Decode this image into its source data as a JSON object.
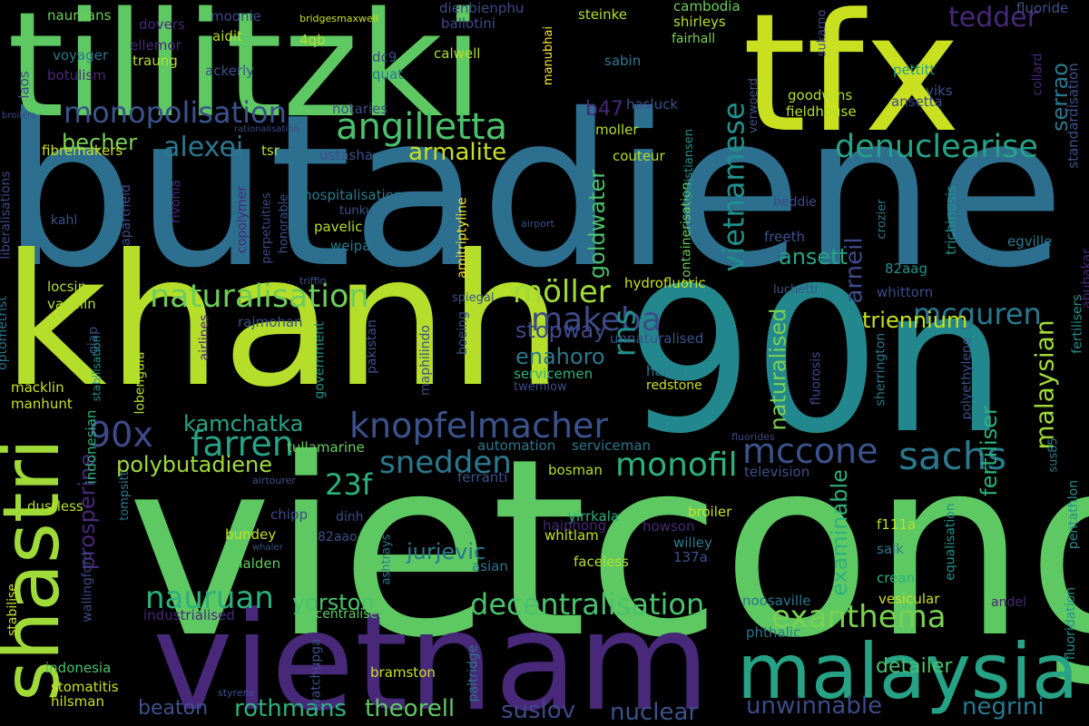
{
  "background": "#000000",
  "words": [
    {
      "text": "butadiene",
      "color": "#2d6f8e"
    },
    {
      "text": "vietcong",
      "color": "#5ec962"
    },
    {
      "text": "khanh",
      "color": "#b5de2b"
    },
    {
      "text": "90n",
      "color": "#23888e"
    },
    {
      "text": "tillitzki",
      "color": "#5ec962"
    },
    {
      "text": "tfx",
      "color": "#c8e020"
    },
    {
      "text": "vietnam",
      "color": "#482878"
    },
    {
      "text": "malaysia",
      "color": "#26a386"
    },
    {
      "text": "shastri",
      "color": "#a0da39"
    },
    {
      "text": "knopfelmacher",
      "color": "#3b528b"
    },
    {
      "text": "angilletta",
      "color": "#4ac16d"
    },
    {
      "text": "monopolisation",
      "color": "#3b528b"
    },
    {
      "text": "naturalisation",
      "color": "#6ccd5a"
    },
    {
      "text": "denuclearise",
      "color": "#26a386"
    },
    {
      "text": "decentralisation",
      "color": "#4ac16d"
    },
    {
      "text": "makeba",
      "color": "#3e4a89"
    },
    {
      "text": "mccone",
      "color": "#3b528b"
    },
    {
      "text": "sachs",
      "color": "#2a788e"
    },
    {
      "text": "farren",
      "color": "#26a386"
    },
    {
      "text": "exanthema",
      "color": "#7ad151"
    },
    {
      "text": "nauruan",
      "color": "#2cb17e"
    },
    {
      "text": "monofil",
      "color": "#2cb17e"
    },
    {
      "text": "snedden",
      "color": "#2a788e"
    },
    {
      "text": "mcguren",
      "color": "#2a788e"
    },
    {
      "text": "alexei",
      "color": "#2a788e"
    },
    {
      "text": "tedder",
      "color": "#482878"
    },
    {
      "text": "möller",
      "color": "#a0da39"
    },
    {
      "text": "90x",
      "color": "#3e4a89"
    },
    {
      "text": "23f",
      "color": "#2cb17e"
    },
    {
      "text": "yorston",
      "color": "#4ac16d"
    },
    {
      "text": "rothmans",
      "color": "#2cb17e"
    },
    {
      "text": "unwinnable",
      "color": "#3e4a89"
    },
    {
      "text": "theorell",
      "color": "#5ec962"
    },
    {
      "text": "suslov",
      "color": "#3e4a89"
    },
    {
      "text": "nuclear",
      "color": "#3b528b"
    },
    {
      "text": "negrini",
      "color": "#2a788e"
    },
    {
      "text": "beaton",
      "color": "#3b528b"
    },
    {
      "text": "jurjevic",
      "color": "#2a788e"
    },
    {
      "text": "polybutadiene",
      "color": "#a0da39"
    },
    {
      "text": "kamchatka",
      "color": "#26a386"
    },
    {
      "text": "armalite",
      "color": "#c8e020"
    },
    {
      "text": "becher",
      "color": "#7ad151"
    },
    {
      "text": "ansett",
      "color": "#26a386"
    },
    {
      "text": "triennium",
      "color": "#c8e020"
    },
    {
      "text": "stopway",
      "color": "#3e4a89"
    },
    {
      "text": "enahoro",
      "color": "#2a788e"
    },
    {
      "text": "detailer",
      "color": "#4ac16d"
    },
    {
      "text": "vietnamese",
      "color": "#21918c"
    },
    {
      "text": "malaysian",
      "color": "#a0da39"
    },
    {
      "text": "goldwater",
      "color": "#4ac16d"
    },
    {
      "text": "rns",
      "color": "#21918c"
    },
    {
      "text": "prosperine",
      "color": "#482878"
    },
    {
      "text": "confrontation",
      "color": "#2cb17e"
    },
    {
      "text": "examinable",
      "color": "#2cb17e"
    },
    {
      "text": "arneil",
      "color": "#3e4a89"
    },
    {
      "text": "naturalised",
      "color": "#7ad151"
    },
    {
      "text": "fertiliser",
      "color": "#2cb17e"
    },
    {
      "text": "serrao",
      "color": "#2a788e"
    },
    {
      "text": "b47",
      "color": "#482878"
    },
    {
      "text": "nauruans",
      "color": "#6ccd5a"
    },
    {
      "text": "dovers",
      "color": "#482878"
    },
    {
      "text": "ellemor",
      "color": "#482878"
    },
    {
      "text": "voyager",
      "color": "#2a788e"
    },
    {
      "text": "botulism",
      "color": "#482878"
    },
    {
      "text": "laos",
      "color": "#3e4a89"
    },
    {
      "text": "traung",
      "color": "#b5de2b"
    },
    {
      "text": "moonie",
      "color": "#3e4a89"
    },
    {
      "text": "aidit",
      "color": "#b5de2b"
    },
    {
      "text": "ackerly",
      "color": "#3b528b"
    },
    {
      "text": "bridgesmaxwell",
      "color": "#c8e020"
    },
    {
      "text": "4qb",
      "color": "#b5de2b"
    },
    {
      "text": "dc9",
      "color": "#3e4a89"
    },
    {
      "text": "quat",
      "color": "#2a788e"
    },
    {
      "text": "dienbienphu",
      "color": "#3e4a89"
    },
    {
      "text": "ballotini",
      "color": "#3e4a89"
    },
    {
      "text": "calwell",
      "color": "#b5de2b"
    },
    {
      "text": "steinke",
      "color": "#b5de2b"
    },
    {
      "text": "sabin",
      "color": "#2a788e"
    },
    {
      "text": "cambodia",
      "color": "#6ccd5a"
    },
    {
      "text": "shirleys",
      "color": "#b5de2b"
    },
    {
      "text": "fairhall",
      "color": "#7ad151"
    },
    {
      "text": "manubhai",
      "color": "#fde725"
    },
    {
      "text": "sukarno",
      "color": "#3e4a89"
    },
    {
      "text": "fluoride",
      "color": "#3b528b"
    },
    {
      "text": "collard",
      "color": "#482878"
    },
    {
      "text": "standardisation",
      "color": "#3b528b"
    },
    {
      "text": "pettitt",
      "color": "#26a386"
    },
    {
      "text": "viks",
      "color": "#3b528b"
    },
    {
      "text": "ansetta",
      "color": "#3e4a89"
    },
    {
      "text": "goodwins",
      "color": "#b5de2b"
    },
    {
      "text": "fieldhouse",
      "color": "#b5de2b"
    },
    {
      "text": "verwoerd",
      "color": "#3b528b"
    },
    {
      "text": "hasluck",
      "color": "#3b528b"
    },
    {
      "text": "notaries",
      "color": "#3e4a89"
    },
    {
      "text": "rationalisation",
      "color": "#3e4a89"
    },
    {
      "text": "broilers",
      "color": "#3e4a89"
    },
    {
      "text": "fibremakers",
      "color": "#c8e020"
    },
    {
      "text": "tsr",
      "color": "#b5de2b"
    },
    {
      "text": "ustasha",
      "color": "#3b528b"
    },
    {
      "text": "moller",
      "color": "#b5de2b"
    },
    {
      "text": "couteur",
      "color": "#b5de2b"
    },
    {
      "text": "containerisation",
      "color": "#6ccd5a"
    },
    {
      "text": "christiansen",
      "color": "#21918c"
    },
    {
      "text": "beddie",
      "color": "#3e4a89"
    },
    {
      "text": "crozier",
      "color": "#2a788e"
    },
    {
      "text": "trichinosis",
      "color": "#21918c"
    },
    {
      "text": "egville",
      "color": "#2a788e"
    },
    {
      "text": "kahl",
      "color": "#3b528b"
    },
    {
      "text": "liberalisations",
      "color": "#3e4a89"
    },
    {
      "text": "apartheid",
      "color": "#3e4a89"
    },
    {
      "text": "rivonia",
      "color": "#482878"
    },
    {
      "text": "copolymer",
      "color": "#482878"
    },
    {
      "text": "perpetuities",
      "color": "#3e4a89"
    },
    {
      "text": "honorable",
      "color": "#3b528b"
    },
    {
      "text": "hospitalisation",
      "color": "#2a788e"
    },
    {
      "text": "tunku",
      "color": "#3b528b"
    },
    {
      "text": "pavelic",
      "color": "#b5de2b"
    },
    {
      "text": "weipa",
      "color": "#2a788e"
    },
    {
      "text": "amitriptyline",
      "color": "#fde725"
    },
    {
      "text": "airport",
      "color": "#3b528b"
    },
    {
      "text": "freeth",
      "color": "#3b528b"
    },
    {
      "text": "82aag",
      "color": "#21918c"
    },
    {
      "text": "luchetti",
      "color": "#3b528b"
    },
    {
      "text": "whittorn",
      "color": "#3e4a89"
    },
    {
      "text": "fertilisers",
      "color": "#21918c"
    },
    {
      "text": "abubakar",
      "color": "#482878"
    },
    {
      "text": "locsin",
      "color": "#b5de2b"
    },
    {
      "text": "vanillin",
      "color": "#b5de2b"
    },
    {
      "text": "triffin",
      "color": "#3b528b"
    },
    {
      "text": "spiegal",
      "color": "#3b528b"
    },
    {
      "text": "hydrofluoric",
      "color": "#c8e020"
    },
    {
      "text": "unnaturalised",
      "color": "#3b528b"
    },
    {
      "text": "optometrist",
      "color": "#2a788e"
    },
    {
      "text": "airlines",
      "color": "#482878"
    },
    {
      "text": "rajmohan",
      "color": "#3b528b"
    },
    {
      "text": "giap",
      "color": "#3b528b"
    },
    {
      "text": "stabilisation",
      "color": "#21918c"
    },
    {
      "text": "lobengula",
      "color": "#b5de2b"
    },
    {
      "text": "government",
      "color": "#21918c"
    },
    {
      "text": "pakistan",
      "color": "#3b528b"
    },
    {
      "text": "maphilindo",
      "color": "#3e4a89"
    },
    {
      "text": "boeing",
      "color": "#3b528b"
    },
    {
      "text": "servicemen",
      "color": "#2cb17e"
    },
    {
      "text": "twemlow",
      "color": "#3e4a89"
    },
    {
      "text": "hanoi",
      "color": "#2a788e"
    },
    {
      "text": "redstone",
      "color": "#c8e020"
    },
    {
      "text": "fluorosis",
      "color": "#3e4a89"
    },
    {
      "text": "sherrington",
      "color": "#2a788e"
    },
    {
      "text": "polyethylene",
      "color": "#3b528b"
    },
    {
      "text": "sus85",
      "color": "#2a788e"
    },
    {
      "text": "macklin",
      "color": "#c8e020"
    },
    {
      "text": "manhunt",
      "color": "#c8e020"
    },
    {
      "text": "indonesian",
      "color": "#2cb17e"
    },
    {
      "text": "tullamarine",
      "color": "#6ccd5a"
    },
    {
      "text": "automation",
      "color": "#2a788e"
    },
    {
      "text": "serviceman",
      "color": "#2a788e"
    },
    {
      "text": "fluorides",
      "color": "#3e4a89"
    },
    {
      "text": "airtourer",
      "color": "#3b528b"
    },
    {
      "text": "ferranti",
      "color": "#3b528b"
    },
    {
      "text": "bosman",
      "color": "#b5de2b"
    },
    {
      "text": "television",
      "color": "#3b528b"
    },
    {
      "text": "dustless",
      "color": "#b5de2b"
    },
    {
      "text": "tompsitt",
      "color": "#2a788e"
    },
    {
      "text": "chipp",
      "color": "#3e4a89"
    },
    {
      "text": "dinh",
      "color": "#3e4a89"
    },
    {
      "text": "82aao",
      "color": "#3b528b"
    },
    {
      "text": "yirrkala",
      "color": "#2cb17e"
    },
    {
      "text": "broiler",
      "color": "#c8e020"
    },
    {
      "text": "howson",
      "color": "#482878"
    },
    {
      "text": "willey",
      "color": "#2a788e"
    },
    {
      "text": "137a",
      "color": "#3b528b"
    },
    {
      "text": "f111a",
      "color": "#b5de2b"
    },
    {
      "text": "salk",
      "color": "#2a788e"
    },
    {
      "text": "bundey",
      "color": "#c8e020"
    },
    {
      "text": "whaler",
      "color": "#3b528b"
    },
    {
      "text": "ashtrays",
      "color": "#2a788e"
    },
    {
      "text": "haiphong",
      "color": "#482878"
    },
    {
      "text": "whitlam",
      "color": "#c8e020"
    },
    {
      "text": "faceless",
      "color": "#b5de2b"
    },
    {
      "text": "halden",
      "color": "#5ec962"
    },
    {
      "text": "asian",
      "color": "#2a788e"
    },
    {
      "text": "crean",
      "color": "#2cb17e"
    },
    {
      "text": "equalisation",
      "color": "#21918c"
    },
    {
      "text": "pentathlon",
      "color": "#21918c"
    },
    {
      "text": "fluoridation",
      "color": "#21918c"
    },
    {
      "text": "stabilise",
      "color": "#c8e020"
    },
    {
      "text": "wallingford",
      "color": "#3e4a89"
    },
    {
      "text": "industrialised",
      "color": "#482878"
    },
    {
      "text": "decentralised",
      "color": "#5ec962"
    },
    {
      "text": "noosaville",
      "color": "#2a788e"
    },
    {
      "text": "vesicular",
      "color": "#c8e020"
    },
    {
      "text": "andel",
      "color": "#482878"
    },
    {
      "text": "phthalic",
      "color": "#2a788e"
    },
    {
      "text": "indonesia",
      "color": "#4ac16d"
    },
    {
      "text": "stomatitis",
      "color": "#c8e020"
    },
    {
      "text": "hilsman",
      "color": "#c8e020"
    },
    {
      "text": "watchupga",
      "color": "#3b528b"
    },
    {
      "text": "styrene",
      "color": "#3b528b"
    },
    {
      "text": "bramston",
      "color": "#c8e020"
    },
    {
      "text": "paltridge",
      "color": "#2a788e"
    }
  ]
}
